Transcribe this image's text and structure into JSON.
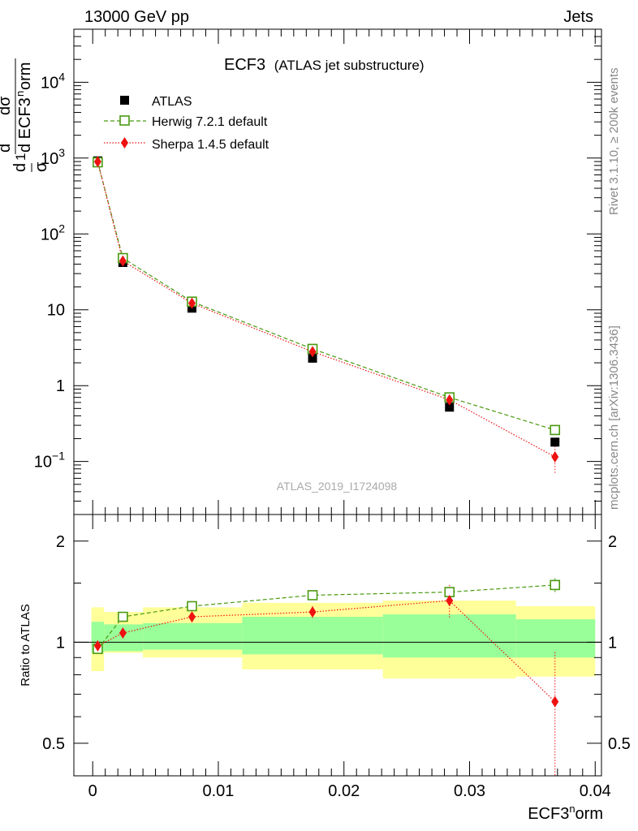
{
  "header": {
    "left": "13000 GeV pp",
    "right": "Jets"
  },
  "side_text": {
    "top": "Rivet 3.1.10, ≥ 200k events",
    "bottom": "mcplots.cern.ch [arXiv:1306.3436]"
  },
  "watermark": "ATLAS_2019_I1724098",
  "colors": {
    "atlas": "#000000",
    "herwig": "#4a9a10",
    "sherpa": "#ee1111",
    "band_inner": "#99ff99",
    "band_outer": "#ffff99"
  },
  "chart_data": [
    {
      "type": "scatter",
      "title": "ECF3",
      "subtitle": "(ATLAS jet substructure)",
      "ylabel": "1/σ dσ/d ECF3^norm",
      "xlabel": "ECF3^norm",
      "yscale": "log",
      "xlim": [
        -0.0015,
        0.0405
      ],
      "ylim": [
        0.02,
        50000
      ],
      "ytick_labels": [
        "10^-1",
        "1",
        "10",
        "10^2",
        "10^3",
        "10^4"
      ],
      "legend": {
        "placement": "top-left",
        "entries": [
          "ATLAS",
          "Herwig 7.2.1 default",
          "Sherpa 1.4.5 default"
        ]
      },
      "series": [
        {
          "name": "ATLAS",
          "marker": "square",
          "x": [
            0.0004,
            0.0024,
            0.0079,
            0.0175,
            0.0284,
            0.0368
          ],
          "y": [
            920,
            42,
            10.5,
            2.3,
            0.52,
            0.18
          ]
        },
        {
          "name": "Herwig 7.2.1 default",
          "marker": "open-square",
          "line": "dashed",
          "x": [
            0.0004,
            0.0024,
            0.0079,
            0.0175,
            0.0284,
            0.0368
          ],
          "y": [
            880,
            48,
            12.8,
            3.05,
            0.7,
            0.26
          ],
          "err": [
            0,
            0,
            0,
            0,
            0,
            0.02
          ]
        },
        {
          "name": "Sherpa 1.4.5 default",
          "marker": "diamond",
          "line": "dotted",
          "x": [
            0.0004,
            0.0024,
            0.0079,
            0.0175,
            0.0284,
            0.0368
          ],
          "y": [
            895,
            44,
            12.2,
            2.8,
            0.65,
            0.115
          ],
          "err": [
            0,
            0,
            0,
            0,
            0.05,
            0.045
          ]
        }
      ]
    },
    {
      "type": "scatter",
      "ylabel": "Ratio to ATLAS",
      "xlabel": "ECF3^norm",
      "xlim": [
        -0.0015,
        0.0405
      ],
      "ylim": [
        0.4,
        2.4
      ],
      "xtick_labels": [
        "0",
        "0.01",
        "0.02",
        "0.03",
        "0.04"
      ],
      "ytick_labels": [
        "0.5",
        "1",
        "2"
      ],
      "reference_line": 1.0,
      "bands": [
        {
          "x0": -0.0001,
          "x1": 0.0009,
          "inner": [
            0.93,
            1.15
          ],
          "outer": [
            0.82,
            1.27
          ]
        },
        {
          "x0": 0.0009,
          "x1": 0.004,
          "inner": [
            0.94,
            1.13
          ],
          "outer": [
            0.93,
            1.23
          ]
        },
        {
          "x0": 0.004,
          "x1": 0.0119,
          "inner": [
            0.95,
            1.14
          ],
          "outer": [
            0.9,
            1.27
          ]
        },
        {
          "x0": 0.0119,
          "x1": 0.0231,
          "inner": [
            0.92,
            1.19
          ],
          "outer": [
            0.83,
            1.31
          ]
        },
        {
          "x0": 0.0231,
          "x1": 0.0337,
          "inner": [
            0.9,
            1.21
          ],
          "outer": [
            0.78,
            1.33
          ]
        },
        {
          "x0": 0.0337,
          "x1": 0.04,
          "inner": [
            0.9,
            1.17
          ],
          "outer": [
            0.79,
            1.28
          ]
        }
      ],
      "series": [
        {
          "name": "Herwig 7.2.1 default",
          "x": [
            0.0004,
            0.0024,
            0.0079,
            0.0175,
            0.0284,
            0.0368
          ],
          "y": [
            0.955,
            1.19,
            1.28,
            1.38,
            1.41,
            1.48
          ],
          "err": [
            0,
            0,
            0,
            0,
            0.04,
            0.07
          ]
        },
        {
          "name": "Sherpa 1.4.5 default",
          "x": [
            0.0004,
            0.0024,
            0.0079,
            0.0175,
            0.0284,
            0.0368
          ],
          "y": [
            0.975,
            1.065,
            1.19,
            1.23,
            1.33,
            0.665
          ],
          "err": [
            0,
            0,
            0,
            0.05,
            0.15,
            0.27
          ]
        }
      ]
    }
  ]
}
